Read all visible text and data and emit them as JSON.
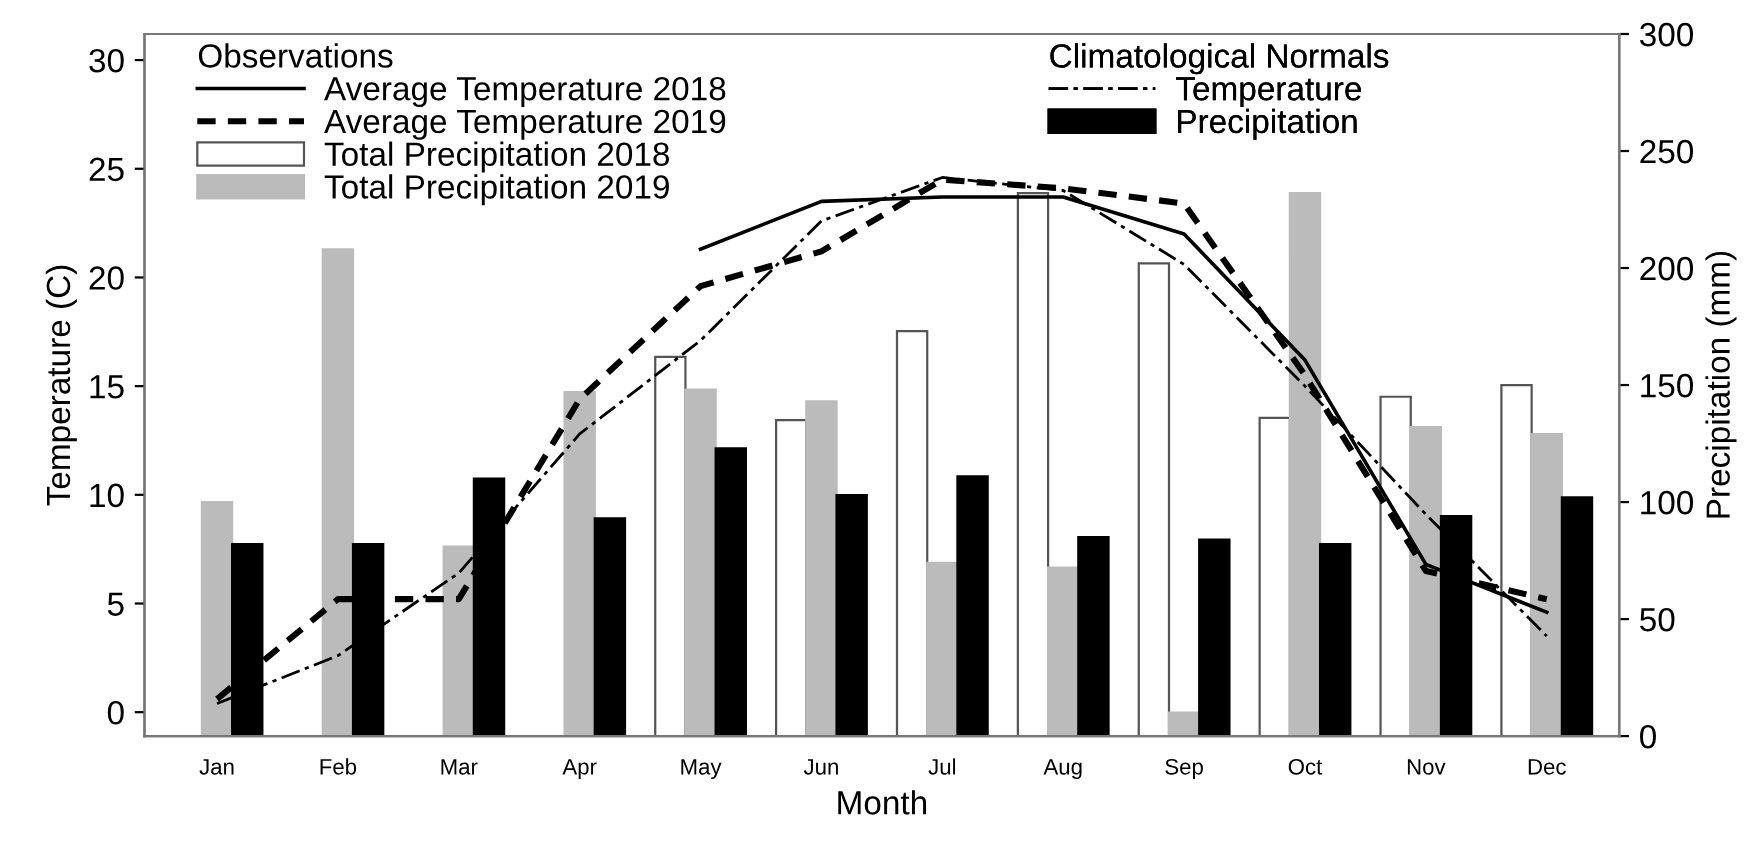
{
  "chart_data": {
    "type": "bar",
    "xlabel": "Month",
    "ylabel": "Temperature (C)",
    "y2label": "Precipitation (mm)",
    "categories": [
      "Jan",
      "Feb",
      "Mar",
      "Apr",
      "May",
      "Jun",
      "Jul",
      "Aug",
      "Sep",
      "Oct",
      "Nov",
      "Dec"
    ],
    "legend": "top",
    "legend_title": [
      "Observations",
      "Climatological Normals"
    ],
    "series": [
      {
        "name": "Average Temperature 2018",
        "type": "line",
        "axis": "y",
        "color": "#000000",
        "line_style": "solid",
        "values": [
          null,
          null,
          null,
          null,
          21.3,
          23.5,
          23.7,
          23.7,
          22.0,
          16.2,
          6.8,
          4.6
        ]
      },
      {
        "name": "Average Temperature 2019",
        "type": "line",
        "axis": "y",
        "color": "#000000",
        "line_style": "dashed",
        "values": [
          0.6,
          5.2,
          5.2,
          14.4,
          19.6,
          21.2,
          24.5,
          24.1,
          23.4,
          15.5,
          6.5,
          5.2
        ]
      },
      {
        "name": "Total Precipitation 2018",
        "axis": "y2",
        "color": "#ffffff",
        "values": [
          null,
          null,
          null,
          null,
          162,
          135,
          173,
          232,
          202,
          136,
          145,
          150
        ]
      },
      {
        "name": "Total Precipitation 2019",
        "axis": "y2",
        "color": "#bbbbbb",
        "values": [
          100,
          208,
          81,
          147,
          148,
          143,
          74,
          72,
          10,
          232,
          132,
          129
        ]
      },
      {
        "name": "Temperature",
        "type": "line",
        "axis": "y",
        "color": "#000000",
        "line_style": "dashdot",
        "values": [
          0.4,
          2.6,
          6.4,
          12.8,
          17.1,
          22.6,
          24.6,
          24.0,
          20.6,
          15.0,
          9.1,
          3.5
        ]
      },
      {
        "name": "Precipitation",
        "axis": "y2",
        "color": "#000000",
        "values": [
          82,
          82,
          110,
          93,
          123,
          103,
          111,
          85,
          84,
          82,
          94,
          102
        ]
      }
    ],
    "ylim": [
      -1.1,
      31.2
    ],
    "yticks": [
      0,
      5,
      10,
      15,
      20,
      25,
      30
    ],
    "y2lim": [
      0,
      300
    ],
    "y2ticks": [
      0,
      50,
      100,
      150,
      200,
      250,
      300
    ],
    "grid": false
  }
}
